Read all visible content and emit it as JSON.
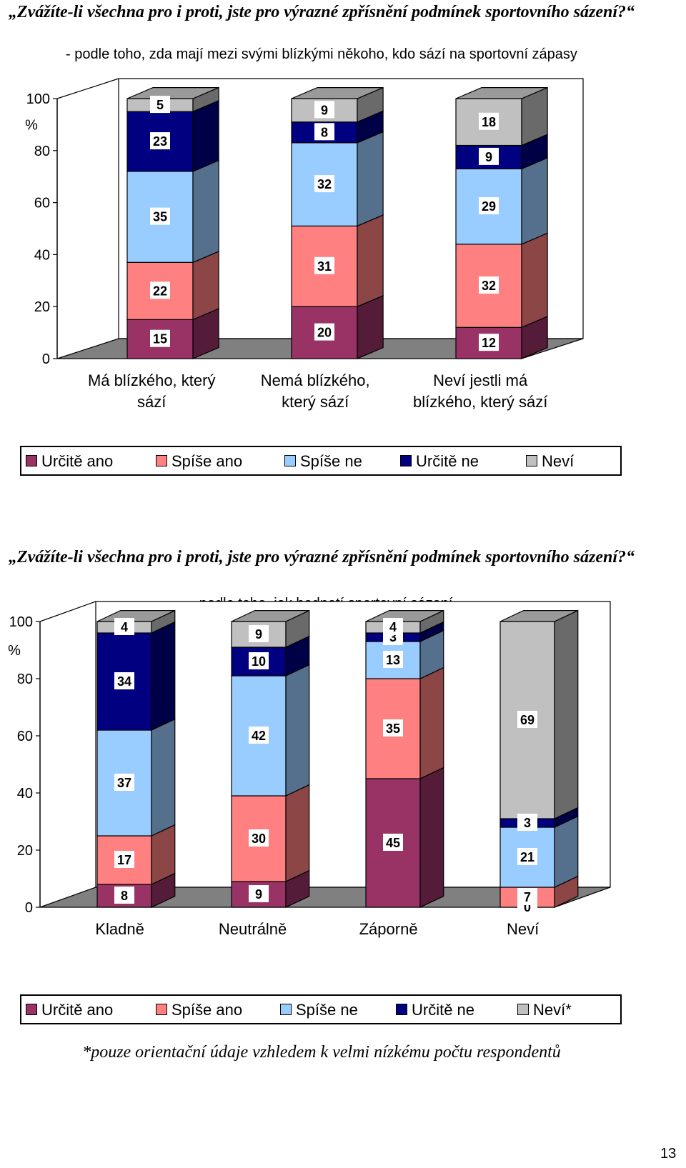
{
  "chart_data": [
    {
      "type": "bar",
      "title": "„Zvážíte-li všechna pro i proti, jste pro výrazné zpřísnění podmínek sportovního sázení?“",
      "subtitle": "- podle toho, zda mají mezi svými blízkými někoho, kdo sází na sportovní zápasy",
      "ylabel": "%",
      "ylim": [
        0,
        100
      ],
      "yticks": [
        "0",
        "20",
        "40",
        "60",
        "80",
        "100"
      ],
      "stacked": true,
      "three_d": true,
      "categories": [
        "Má blízkého, který sází",
        "Nemá blízkého, který sází",
        "Neví jestli má blízkého, který sází"
      ],
      "series": [
        {
          "name": "Určitě ano",
          "color": "#993366",
          "values": [
            15,
            20,
            12
          ]
        },
        {
          "name": "Spíše ano",
          "color": "#FF8080",
          "values": [
            22,
            31,
            32
          ]
        },
        {
          "name": "Spíše ne",
          "color": "#99CCFF",
          "values": [
            35,
            32,
            29
          ]
        },
        {
          "name": "Určitě ne",
          "color": "#000080",
          "values": [
            23,
            8,
            9
          ]
        },
        {
          "name": "Neví",
          "color": "#C0C0C0",
          "values": [
            5,
            9,
            18
          ]
        }
      ],
      "legend_position": "bottom"
    },
    {
      "type": "bar",
      "title": "„Zvážíte-li všechna pro i proti, jste pro výrazné zpřísnění podmínek sportovního sázení?“",
      "subtitle": "- podle toho, jak hodnotí sportovní sázení",
      "ylabel": "%",
      "ylim": [
        0,
        100
      ],
      "yticks": [
        "0",
        "20",
        "40",
        "60",
        "80",
        "100"
      ],
      "stacked": true,
      "three_d": true,
      "categories": [
        "Kladně",
        "Neutrálně",
        "Záporně",
        "Neví"
      ],
      "series": [
        {
          "name": "Určitě ano",
          "color": "#993366",
          "values": [
            8,
            9,
            45,
            0
          ]
        },
        {
          "name": "Spíše ano",
          "color": "#FF8080",
          "values": [
            17,
            30,
            35,
            7
          ]
        },
        {
          "name": "Spíše ne",
          "color": "#99CCFF",
          "values": [
            37,
            42,
            13,
            21
          ]
        },
        {
          "name": "Určitě ne",
          "color": "#000080",
          "values": [
            34,
            10,
            3,
            3
          ]
        },
        {
          "name": "Neví*",
          "color": "#C0C0C0",
          "values": [
            4,
            9,
            4,
            69
          ]
        }
      ],
      "legend_position": "bottom"
    }
  ],
  "footnote": "*pouze orientační údaje vzhledem k velmi nízkému počtu respondentů",
  "page_number": "13"
}
